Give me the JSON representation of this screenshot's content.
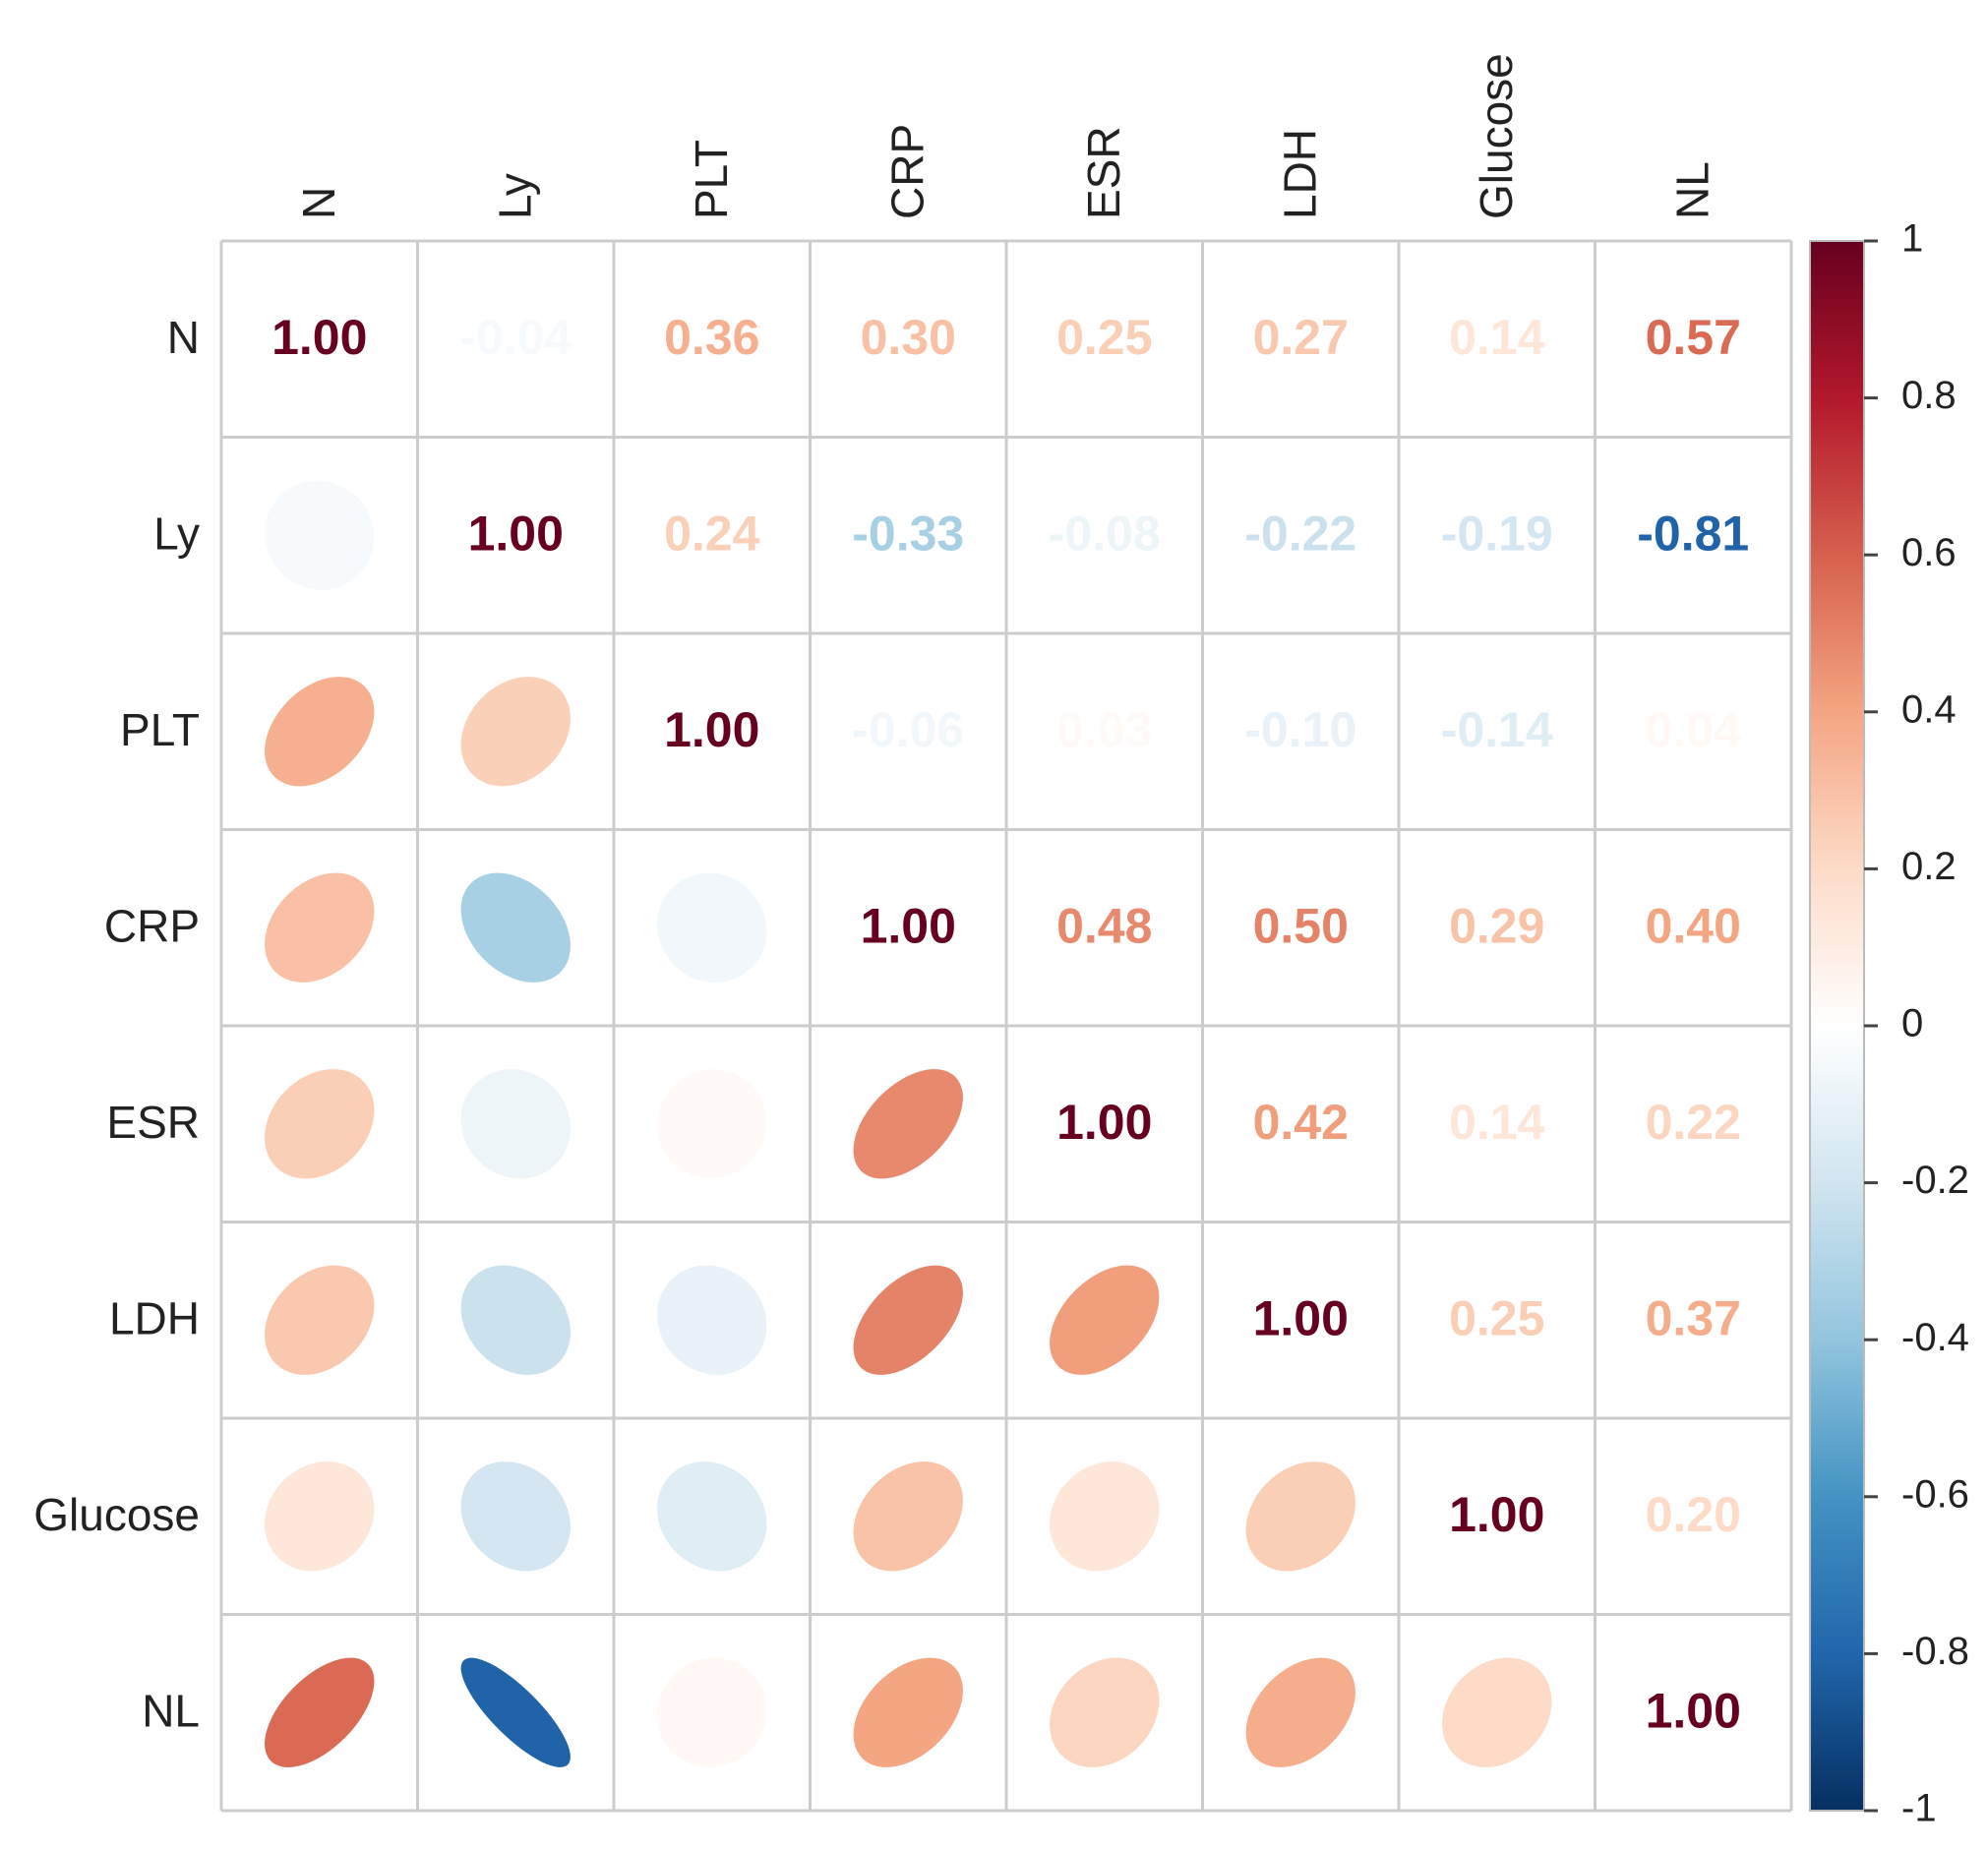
{
  "chart_data": {
    "type": "heatmap",
    "subtype": "correlation-matrix",
    "upper_method": "number",
    "lower_method": "ellipse",
    "variables": [
      "N",
      "Ly",
      "PLT",
      "CRP",
      "ESR",
      "LDH",
      "Glucose",
      "NL"
    ],
    "matrix": [
      [
        1.0,
        -0.04,
        0.36,
        0.3,
        0.25,
        0.27,
        0.14,
        0.57
      ],
      [
        -0.04,
        1.0,
        0.24,
        -0.33,
        -0.08,
        -0.22,
        -0.19,
        -0.81
      ],
      [
        0.36,
        0.24,
        1.0,
        -0.06,
        0.03,
        -0.1,
        -0.14,
        0.04
      ],
      [
        0.3,
        -0.33,
        -0.06,
        1.0,
        0.48,
        0.5,
        0.29,
        0.4
      ],
      [
        0.25,
        -0.08,
        0.03,
        0.48,
        1.0,
        0.42,
        0.14,
        0.22
      ],
      [
        0.27,
        -0.22,
        -0.1,
        0.5,
        0.42,
        1.0,
        0.25,
        0.37
      ],
      [
        0.14,
        -0.19,
        -0.14,
        0.29,
        0.14,
        0.25,
        1.0,
        0.2
      ],
      [
        0.57,
        -0.81,
        0.04,
        0.4,
        0.22,
        0.37,
        0.2,
        1.0
      ]
    ],
    "color_scale": {
      "range": [
        -1,
        1
      ],
      "ticks": [
        "1",
        "0.8",
        "0.6",
        "0.4",
        "0.2",
        "0",
        "-0.2",
        "-0.4",
        "-0.6",
        "-0.8",
        "-1"
      ],
      "colors": [
        "#67001F",
        "#B2182B",
        "#D6604D",
        "#F4A582",
        "#FDDBC7",
        "#FFFFFF",
        "#D1E5F0",
        "#92C5DE",
        "#4393C3",
        "#2166AC",
        "#053061"
      ]
    },
    "legend": "right",
    "grid": true
  }
}
